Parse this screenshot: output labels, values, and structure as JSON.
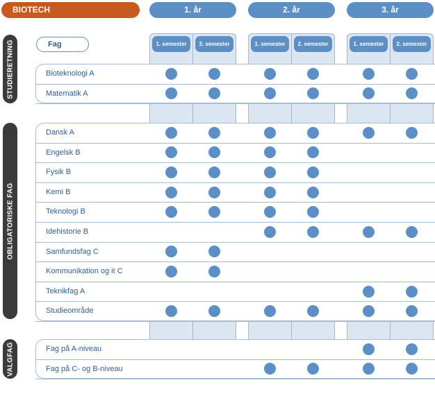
{
  "header": {
    "program": "BIOTECH",
    "years": [
      "1. år",
      "2. år",
      "3. år"
    ]
  },
  "fag_label": "Fag",
  "semester_labels": [
    "1. semester",
    "2. semester",
    "1. semester",
    "2. semester",
    "1. semester",
    "2. semester"
  ],
  "groups": [
    {
      "label": "STUDIERETNING",
      "rows": [
        {
          "name": "Bioteknologi A",
          "semesters": [
            1,
            1,
            1,
            1,
            1,
            1
          ]
        },
        {
          "name": "Matematik A",
          "semesters": [
            1,
            1,
            1,
            1,
            1,
            1
          ]
        }
      ]
    },
    {
      "label": "OBLIGATORISKE FAG",
      "rows": [
        {
          "name": "Dansk A",
          "semesters": [
            1,
            1,
            1,
            1,
            1,
            1
          ]
        },
        {
          "name": "Engelsk B",
          "semesters": [
            1,
            1,
            1,
            1,
            0,
            0
          ]
        },
        {
          "name": "Fysik B",
          "semesters": [
            1,
            1,
            1,
            1,
            0,
            0
          ]
        },
        {
          "name": "Kemi B",
          "semesters": [
            1,
            1,
            1,
            1,
            0,
            0
          ]
        },
        {
          "name": "Teknologi B",
          "semesters": [
            1,
            1,
            1,
            1,
            0,
            0
          ]
        },
        {
          "name": "Idehistorie B",
          "semesters": [
            0,
            0,
            1,
            1,
            1,
            1
          ]
        },
        {
          "name": "Samfundsfag C",
          "semesters": [
            1,
            1,
            0,
            0,
            0,
            0
          ]
        },
        {
          "name": "Kommunikation og it C",
          "semesters": [
            1,
            1,
            0,
            0,
            0,
            0
          ]
        },
        {
          "name": "Teknikfag A",
          "semesters": [
            0,
            0,
            0,
            0,
            1,
            1
          ]
        },
        {
          "name": "Studieområde",
          "semesters": [
            1,
            1,
            1,
            1,
            1,
            1
          ]
        }
      ]
    },
    {
      "label": "VALGFAG",
      "rows": [
        {
          "name": "Fag på A-niveau",
          "semesters": [
            0,
            0,
            0,
            0,
            1,
            1
          ]
        },
        {
          "name": "Fag på C- og B-niveau",
          "semesters": [
            0,
            0,
            1,
            1,
            1,
            1
          ]
        }
      ]
    }
  ],
  "colors": {
    "accent": "#c8591f",
    "blue": "#5b8fc6",
    "column_fill": "#dce6f2",
    "dark": "#3b3b3b"
  }
}
